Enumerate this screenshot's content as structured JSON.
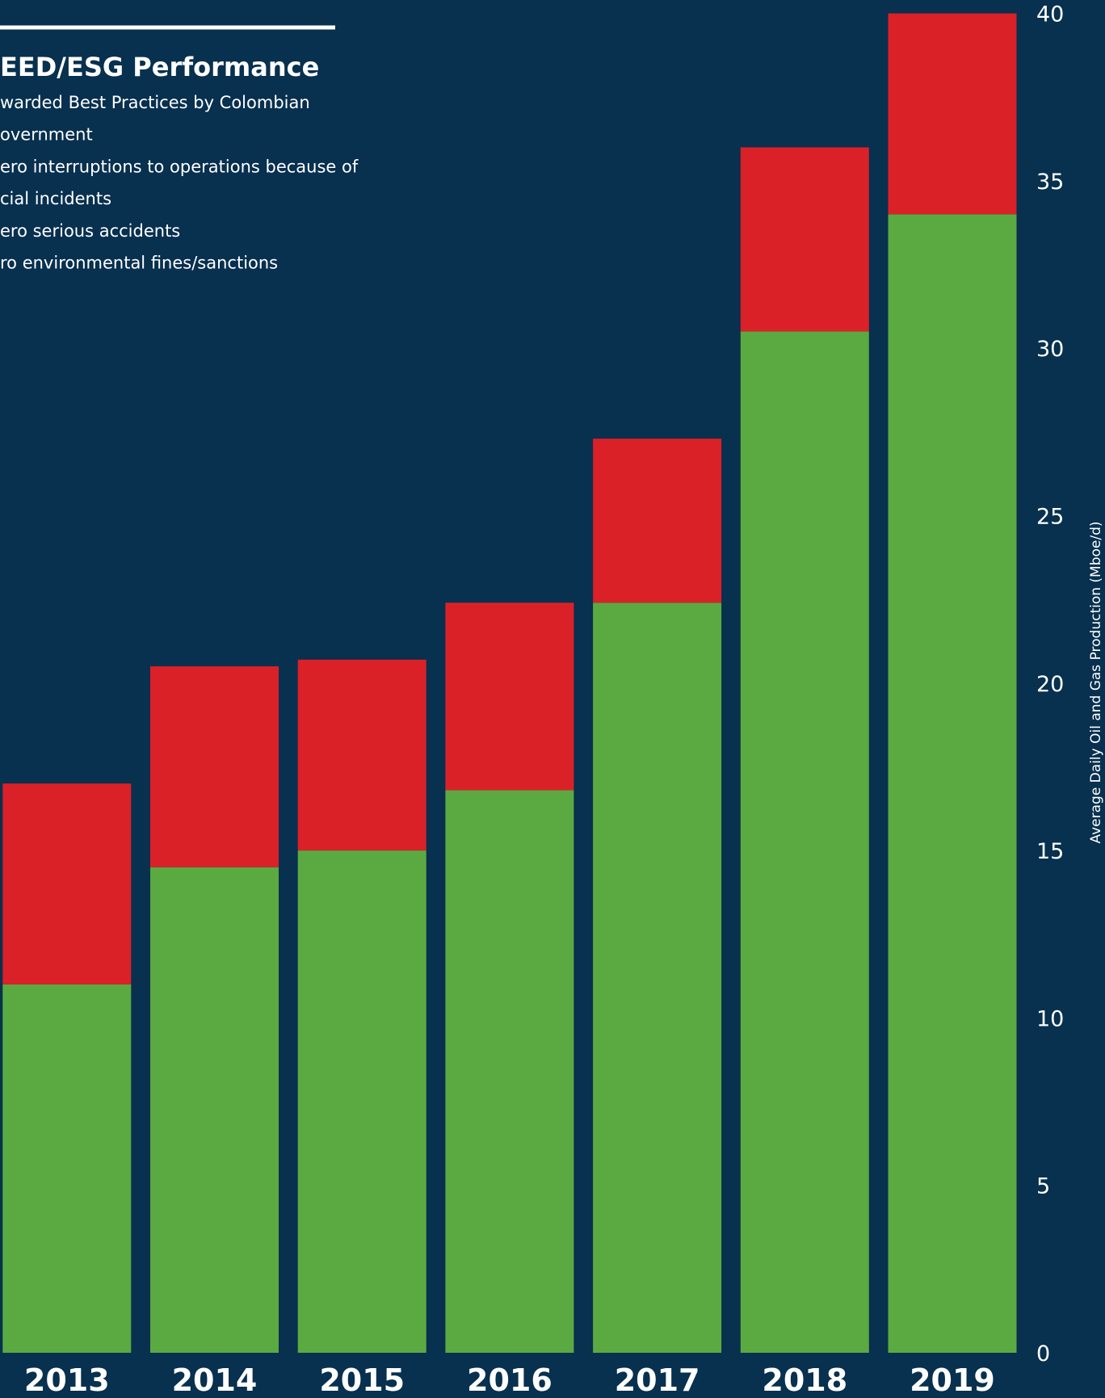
{
  "chart_data": {
    "type": "stacked_bar",
    "title": "EED/ESG Performance",
    "annotations": [
      "warded Best Practices by Colombian",
      "overnment",
      "ero interruptions to operations because of",
      "cial incidents",
      "ero serious accidents",
      "ro environmental fines/sanctions"
    ],
    "y_label": "Average Daily Oil and Gas Production (Mboe/d)",
    "categories": [
      "2013",
      "2014",
      "2015",
      "2016",
      "2017",
      "2018",
      "2019"
    ],
    "series": [
      {
        "color": "#5aaa41",
        "values": [
          11.0,
          14.5,
          15.0,
          16.8,
          22.4,
          30.5,
          34.0
        ]
      },
      {
        "color": "#da2128",
        "values": [
          6.0,
          6.0,
          5.7,
          5.6,
          4.9,
          5.5,
          6.0
        ]
      }
    ],
    "ylim": [
      0,
      40
    ],
    "yticks": [
      0,
      5,
      10,
      15,
      20,
      25,
      30,
      35,
      40
    ],
    "grid": false
  }
}
